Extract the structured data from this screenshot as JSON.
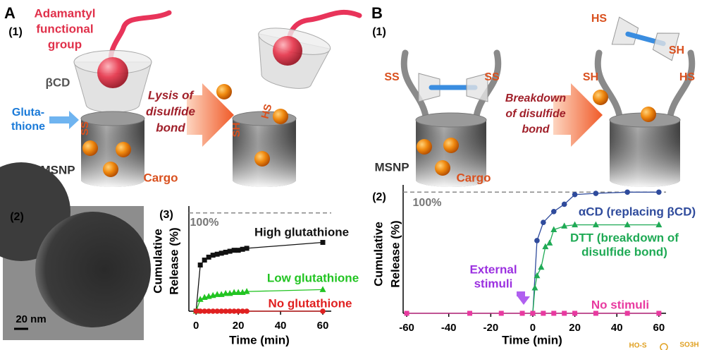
{
  "panel_a": {
    "label": "A",
    "sub": "(1)",
    "adamantyl": [
      "Adamantyl",
      "functional",
      "group"
    ],
    "bcd": "βCD",
    "glutathione": [
      "Gluta-",
      "thione"
    ],
    "ss": "SS",
    "msnp": "MSNP",
    "cargo": "Cargo",
    "arrow": [
      "Lysis of",
      "disulfide",
      "bond"
    ],
    "sh": "SH",
    "hs": "HS"
  },
  "panel_b": {
    "label": "B",
    "sub": "(1)",
    "ss_left": "SS",
    "ss_right": "SS",
    "msnp": "MSNP",
    "cargo": "Cargo",
    "arrow": [
      "Breakdown",
      "of disulfide",
      "bond"
    ],
    "hs_top": "HS",
    "sh_top": "SH",
    "sh": "SH",
    "hs": "HS"
  },
  "tem": {
    "label": "(2)",
    "scale": "20 nm"
  },
  "corner": [
    "HO-S",
    "SO3H"
  ],
  "chart_data": [
    {
      "type": "line",
      "label": "(3)",
      "y_label": [
        "Cumulative",
        "Release (%)"
      ],
      "x_label": "Time (min)",
      "xlim": [
        -3.4,
        64
      ],
      "ylim": [
        0,
        107
      ],
      "xticks": [
        0,
        20,
        40,
        60
      ],
      "ref_line": {
        "value": 100,
        "label": "100%"
      },
      "series": [
        {
          "name": "High glutathione",
          "color": "#111111",
          "marker": "square",
          "x": [
            0,
            2,
            4,
            6,
            8,
            10,
            12,
            14,
            16,
            18,
            20,
            22,
            24,
            60
          ],
          "values": [
            0,
            47,
            52,
            55,
            57,
            58,
            59,
            60,
            61,
            62,
            62,
            63,
            64,
            70
          ]
        },
        {
          "name": "Low glutathione",
          "color": "#22c422",
          "marker": "triangle",
          "x": [
            0,
            2,
            4,
            6,
            8,
            10,
            12,
            14,
            16,
            18,
            20,
            22,
            24,
            60
          ],
          "values": [
            0,
            12,
            14,
            15,
            16,
            17,
            17,
            18,
            18,
            19,
            19,
            19,
            20,
            22
          ]
        },
        {
          "name": "No glutathione",
          "color": "#e02020",
          "marker": "circle",
          "x": [
            0,
            2,
            4,
            6,
            8,
            10,
            12,
            14,
            16,
            18,
            20,
            22,
            24,
            60
          ],
          "values": [
            0,
            0,
            0,
            0,
            0,
            0,
            0,
            0,
            0,
            0,
            0,
            0,
            0,
            0
          ]
        }
      ]
    },
    {
      "type": "line",
      "label": "(2)",
      "y_label": [
        "Cumulative",
        "Release (%)"
      ],
      "x_label": "Time (min)",
      "xlim": [
        -61.7,
        63.4
      ],
      "ylim": [
        0,
        106
      ],
      "xticks": [
        -60,
        -40,
        -20,
        0,
        20,
        40,
        60
      ],
      "ref_line": {
        "value": 100,
        "label": "100%"
      },
      "annotation": [
        "External",
        "stimuli"
      ],
      "series": [
        {
          "name": "αCD (replacing βCD)",
          "color": "#2f4b9c",
          "marker": "circle",
          "x": [
            0,
            2,
            5,
            10,
            15,
            20,
            30,
            45,
            60
          ],
          "values": [
            0,
            60,
            75,
            84,
            90,
            98,
            99,
            100,
            100
          ]
        },
        {
          "name": [
            "DTT (breakdown of",
            "disulfide bond)"
          ],
          "color": "#1faa55",
          "marker": "triangle",
          "x": [
            0,
            1,
            2,
            4,
            6,
            8,
            10,
            15,
            20,
            30,
            45,
            60
          ],
          "values": [
            0,
            21,
            31,
            38,
            55,
            58,
            69,
            72,
            73,
            73,
            73,
            73
          ]
        },
        {
          "name": "No stimuli",
          "color": "#e83aa0",
          "marker": "square",
          "x": [
            -60,
            -30,
            -15,
            -5,
            0,
            5,
            10,
            15,
            20,
            30,
            45,
            60
          ],
          "values": [
            0,
            0,
            0,
            0,
            0,
            0,
            0,
            0,
            0,
            0,
            0,
            0
          ]
        }
      ]
    }
  ]
}
